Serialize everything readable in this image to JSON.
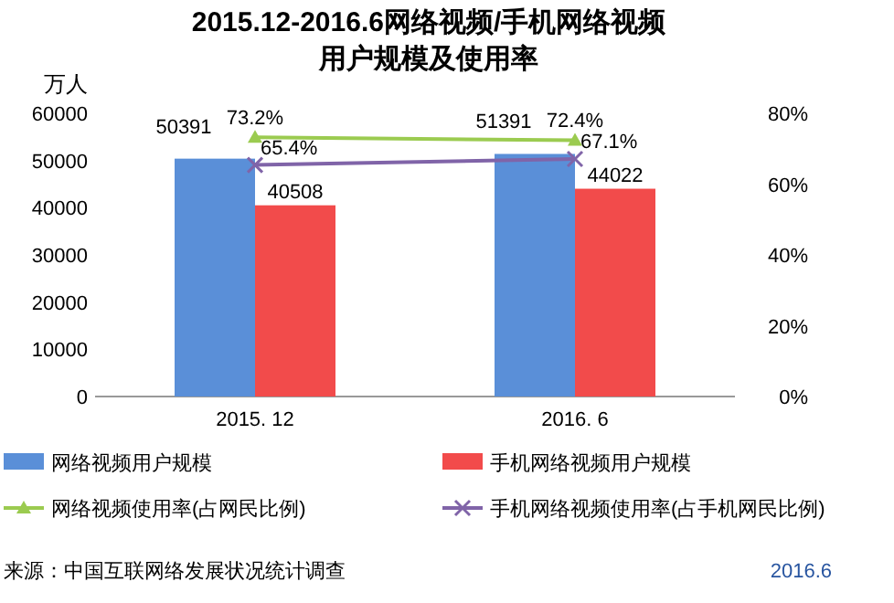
{
  "chart_data": {
    "type": "bar",
    "title": "2015.12-2016.6网络视频/手机网络视频用户规模及使用率",
    "ylabel": "万人",
    "categories": [
      "2015. 12",
      "2016. 6"
    ],
    "series": [
      {
        "name": "网络视频用户规模",
        "color": "#5a8fd8",
        "values": [
          50391,
          51391
        ],
        "value_labels": [
          "50391",
          "51391"
        ]
      },
      {
        "name": "手机网络视频用户规模",
        "color": "#f24b4b",
        "values": [
          40508,
          44022
        ],
        "value_labels": [
          "40508",
          "44022"
        ]
      },
      {
        "name": "网络视频使用率(占网民比例)",
        "type": "line",
        "axis": "y2",
        "marker": "triangle",
        "color": "#9bcb50",
        "values": [
          73.2,
          72.4
        ],
        "value_labels": [
          "73.2%",
          "72.4%"
        ]
      },
      {
        "name": "手机网络视频使用率(占手机网民比例)",
        "type": "line",
        "axis": "y2",
        "marker": "cross",
        "color": "#8064a8",
        "values": [
          65.4,
          67.1
        ],
        "value_labels": [
          "65.4%",
          "67.1%"
        ]
      }
    ],
    "ylim": [
      0,
      60000
    ],
    "yticks": [
      0,
      10000,
      20000,
      30000,
      40000,
      50000,
      60000
    ],
    "y2lim": [
      0,
      80
    ],
    "y2ticks": [
      {
        "value": 0,
        "label": "0%"
      },
      {
        "value": 20,
        "label": "20%"
      },
      {
        "value": 40,
        "label": "40%"
      },
      {
        "value": 60,
        "label": "60%"
      },
      {
        "value": 80,
        "label": "80%"
      }
    ],
    "legend": "bottom",
    "grid": false,
    "annotations": [
      "来源：中国互联网络发展状况统计调查",
      "2016.6"
    ]
  }
}
